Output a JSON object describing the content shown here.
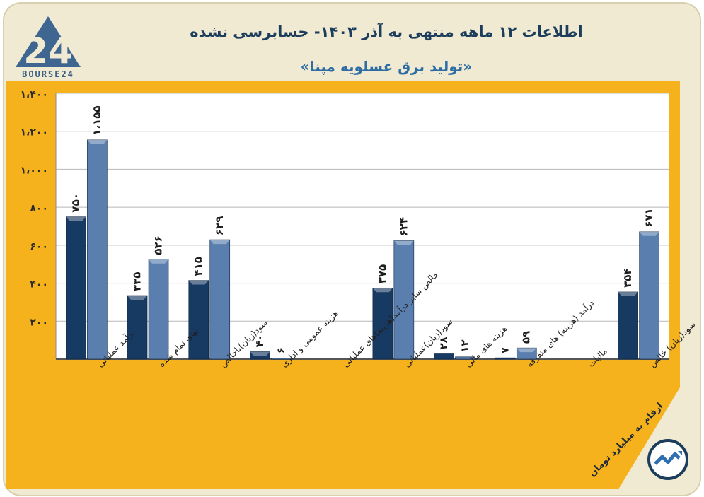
{
  "header": {
    "title": "اطلاعات ۱۲ ماهه منتهی به آذر ۱۴۰۳- حسابرسی نشده",
    "subtitle": "«تولید برق عسلویه مپنا»",
    "brand": "BOURSE24",
    "note": "ارقام به میلیارد تومان"
  },
  "colors": {
    "panel": "#f5b21c",
    "plot": "#ffffff",
    "series1": "#173a63",
    "series2": "#5a7fae"
  },
  "chart_data": {
    "type": "bar",
    "title": "اطلاعات ۱۲ ماهه منتهی به آذر ۱۴۰۳- حسابرسی نشده",
    "categories": [
      "درآمد عملیاتی",
      "بهای تمام شده",
      "سود(زیان)ناخالص",
      "هزینه عمومی و اداری",
      "خالص سایر درآمد(هزینه)های عملیاتی",
      "سود(زیان)عملیاتی",
      "هزینه های مالی",
      "درآمد (هزینه) های متفرقه",
      "مالیات",
      "سود(زیان) خالص"
    ],
    "series": [
      {
        "values": [
          750,
          335,
          415,
          40,
          0,
          375,
          28,
          7,
          0,
          354
        ],
        "labels": [
          "۷۵۰",
          "۳۳۵",
          "۴۱۵",
          "۴۰",
          "",
          "۳۷۵",
          "۲۸",
          "۷",
          "",
          "۳۵۴"
        ]
      },
      {
        "values": [
          1155,
          526,
          629,
          6,
          0,
          624,
          12,
          59,
          0,
          671
        ],
        "labels": [
          "۱،۱۵۵",
          "۵۲۶",
          "۶۲۹",
          "۶",
          "",
          "۶۲۴",
          "۱۲",
          "۵۹",
          "",
          "۶۷۱"
        ]
      }
    ],
    "ylim": [
      0,
      1400
    ],
    "yticks": [
      200,
      400,
      600,
      800,
      1000,
      1200,
      1400
    ],
    "ytick_labels": [
      "۲۰۰",
      "۴۰۰",
      "۶۰۰",
      "۸۰۰",
      "۱،۰۰۰",
      "۱،۲۰۰",
      "۱،۴۰۰"
    ],
    "grid": true,
    "legend": "none"
  }
}
